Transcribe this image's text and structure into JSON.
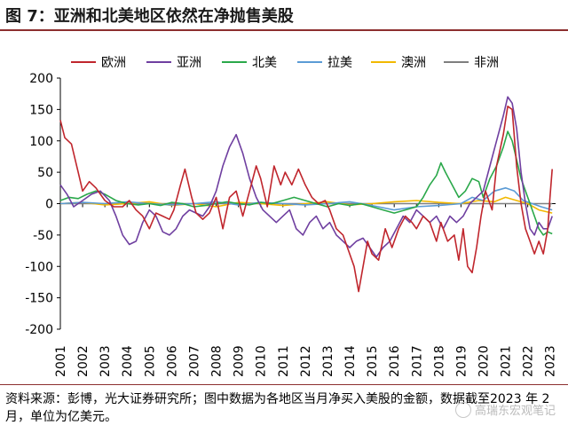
{
  "title": "图 7：亚洲和北美地区依然在净抛售美股",
  "footnote": "资料来源：彭博，光大证券研究所；图中数据为各地区当月净买入美股的金额，数据截至2023 年 2 月，单位为亿美元。",
  "watermark": "高瑞东宏观笔记",
  "chart_data": {
    "type": "line",
    "title": "",
    "xlabel": "",
    "ylabel": "",
    "ylim": [
      -200,
      200
    ],
    "yticks": [
      -200,
      -150,
      -100,
      -50,
      0,
      50,
      100,
      150,
      200
    ],
    "xlim": [
      2001,
      2023.25
    ],
    "xticks": [
      "2001",
      "2002",
      "2003",
      "2004",
      "2005",
      "2006",
      "2007",
      "2008",
      "2009",
      "2010",
      "2011",
      "2012",
      "2013",
      "2014",
      "2015",
      "2016",
      "2017",
      "2018",
      "2019",
      "2020",
      "2021",
      "2022",
      "2023"
    ],
    "legend_position": "top",
    "grid": false,
    "series": [
      {
        "name": "欧洲",
        "color": "#c0262d",
        "points": [
          [
            2001.0,
            133
          ],
          [
            2001.2,
            105
          ],
          [
            2001.5,
            95
          ],
          [
            2001.8,
            50
          ],
          [
            2002.0,
            20
          ],
          [
            2002.3,
            35
          ],
          [
            2002.6,
            25
          ],
          [
            2003.0,
            5
          ],
          [
            2003.4,
            -5
          ],
          [
            2003.8,
            -5
          ],
          [
            2004.1,
            5
          ],
          [
            2004.4,
            -10
          ],
          [
            2004.7,
            -20
          ],
          [
            2005.0,
            -40
          ],
          [
            2005.3,
            -15
          ],
          [
            2005.6,
            -20
          ],
          [
            2005.9,
            -25
          ],
          [
            2006.1,
            -10
          ],
          [
            2006.4,
            30
          ],
          [
            2006.6,
            55
          ],
          [
            2006.9,
            10
          ],
          [
            2007.1,
            -15
          ],
          [
            2007.4,
            -25
          ],
          [
            2007.7,
            -15
          ],
          [
            2008.0,
            10
          ],
          [
            2008.3,
            -40
          ],
          [
            2008.6,
            10
          ],
          [
            2008.9,
            20
          ],
          [
            2009.2,
            -20
          ],
          [
            2009.5,
            20
          ],
          [
            2009.8,
            60
          ],
          [
            2010.0,
            40
          ],
          [
            2010.3,
            -5
          ],
          [
            2010.6,
            60
          ],
          [
            2010.9,
            30
          ],
          [
            2011.1,
            50
          ],
          [
            2011.4,
            30
          ],
          [
            2011.7,
            55
          ],
          [
            2012.0,
            30
          ],
          [
            2012.3,
            10
          ],
          [
            2012.6,
            0
          ],
          [
            2012.9,
            5
          ],
          [
            2013.1,
            -10
          ],
          [
            2013.4,
            -40
          ],
          [
            2013.7,
            -50
          ],
          [
            2014.0,
            -80
          ],
          [
            2014.2,
            -100
          ],
          [
            2014.4,
            -140
          ],
          [
            2014.6,
            -100
          ],
          [
            2014.8,
            -60
          ],
          [
            2015.0,
            -80
          ],
          [
            2015.3,
            -90
          ],
          [
            2015.6,
            -40
          ],
          [
            2015.9,
            -70
          ],
          [
            2016.2,
            -40
          ],
          [
            2016.5,
            -20
          ],
          [
            2016.8,
            -30
          ],
          [
            2017.0,
            -40
          ],
          [
            2017.3,
            -20
          ],
          [
            2017.6,
            -30
          ],
          [
            2017.9,
            -60
          ],
          [
            2018.1,
            -30
          ],
          [
            2018.4,
            -60
          ],
          [
            2018.7,
            -50
          ],
          [
            2018.9,
            -90
          ],
          [
            2019.1,
            -40
          ],
          [
            2019.3,
            -100
          ],
          [
            2019.5,
            -110
          ],
          [
            2019.7,
            -70
          ],
          [
            2019.9,
            -20
          ],
          [
            2020.1,
            20
          ],
          [
            2020.4,
            -10
          ],
          [
            2020.6,
            60
          ],
          [
            2020.9,
            110
          ],
          [
            2021.1,
            155
          ],
          [
            2021.3,
            150
          ],
          [
            2021.5,
            60
          ],
          [
            2021.7,
            0
          ],
          [
            2021.9,
            -40
          ],
          [
            2022.1,
            -60
          ],
          [
            2022.3,
            -80
          ],
          [
            2022.5,
            -60
          ],
          [
            2022.7,
            -80
          ],
          [
            2022.9,
            -40
          ],
          [
            2023.0,
            10
          ],
          [
            2023.1,
            55
          ]
        ]
      },
      {
        "name": "亚洲",
        "color": "#6f3fa0",
        "points": [
          [
            2001.0,
            30
          ],
          [
            2001.3,
            15
          ],
          [
            2001.6,
            -5
          ],
          [
            2002.0,
            5
          ],
          [
            2002.4,
            15
          ],
          [
            2002.8,
            20
          ],
          [
            2003.2,
            5
          ],
          [
            2003.5,
            -20
          ],
          [
            2003.8,
            -50
          ],
          [
            2004.1,
            -65
          ],
          [
            2004.4,
            -60
          ],
          [
            2004.7,
            -30
          ],
          [
            2005.0,
            -10
          ],
          [
            2005.3,
            -20
          ],
          [
            2005.6,
            -45
          ],
          [
            2005.9,
            -50
          ],
          [
            2006.2,
            -40
          ],
          [
            2006.5,
            -20
          ],
          [
            2006.8,
            -10
          ],
          [
            2007.1,
            -15
          ],
          [
            2007.4,
            -20
          ],
          [
            2007.7,
            -5
          ],
          [
            2008.0,
            20
          ],
          [
            2008.3,
            60
          ],
          [
            2008.6,
            90
          ],
          [
            2008.9,
            110
          ],
          [
            2009.2,
            80
          ],
          [
            2009.5,
            40
          ],
          [
            2009.8,
            10
          ],
          [
            2010.1,
            -10
          ],
          [
            2010.4,
            -20
          ],
          [
            2010.7,
            -30
          ],
          [
            2011.0,
            -20
          ],
          [
            2011.3,
            -10
          ],
          [
            2011.6,
            -40
          ],
          [
            2011.9,
            -50
          ],
          [
            2012.2,
            -30
          ],
          [
            2012.5,
            -20
          ],
          [
            2012.8,
            -40
          ],
          [
            2013.1,
            -30
          ],
          [
            2013.4,
            -50
          ],
          [
            2013.7,
            -60
          ],
          [
            2014.0,
            -70
          ],
          [
            2014.3,
            -60
          ],
          [
            2014.6,
            -55
          ],
          [
            2014.9,
            -70
          ],
          [
            2015.2,
            -85
          ],
          [
            2015.5,
            -70
          ],
          [
            2015.8,
            -60
          ],
          [
            2016.1,
            -40
          ],
          [
            2016.4,
            -20
          ],
          [
            2016.7,
            -30
          ],
          [
            2017.0,
            -10
          ],
          [
            2017.3,
            -20
          ],
          [
            2017.6,
            -30
          ],
          [
            2017.9,
            -20
          ],
          [
            2018.2,
            -40
          ],
          [
            2018.5,
            -20
          ],
          [
            2018.8,
            -30
          ],
          [
            2019.1,
            -20
          ],
          [
            2019.4,
            0
          ],
          [
            2019.7,
            10
          ],
          [
            2020.0,
            20
          ],
          [
            2020.3,
            60
          ],
          [
            2020.6,
            100
          ],
          [
            2020.9,
            140
          ],
          [
            2021.1,
            170
          ],
          [
            2021.3,
            160
          ],
          [
            2021.5,
            120
          ],
          [
            2021.7,
            50
          ],
          [
            2021.9,
            0
          ],
          [
            2022.1,
            -40
          ],
          [
            2022.3,
            -50
          ],
          [
            2022.5,
            -30
          ],
          [
            2022.7,
            -40
          ],
          [
            2022.9,
            -40
          ],
          [
            2023.1,
            -20
          ]
        ]
      },
      {
        "name": "北美",
        "color": "#2aa84a",
        "points": [
          [
            2001.0,
            5
          ],
          [
            2001.4,
            10
          ],
          [
            2001.8,
            8
          ],
          [
            2002.2,
            15
          ],
          [
            2002.6,
            20
          ],
          [
            2003.0,
            15
          ],
          [
            2003.5,
            5
          ],
          [
            2004.0,
            0
          ],
          [
            2004.5,
            -2
          ],
          [
            2005.0,
            0
          ],
          [
            2005.5,
            -3
          ],
          [
            2006.0,
            2
          ],
          [
            2006.5,
            0
          ],
          [
            2007.0,
            -5
          ],
          [
            2007.5,
            -3
          ],
          [
            2008.0,
            0
          ],
          [
            2008.5,
            3
          ],
          [
            2009.0,
            0
          ],
          [
            2009.5,
            -2
          ],
          [
            2010.0,
            2
          ],
          [
            2010.5,
            0
          ],
          [
            2011.0,
            5
          ],
          [
            2011.5,
            10
          ],
          [
            2012.0,
            5
          ],
          [
            2012.5,
            0
          ],
          [
            2013.0,
            -5
          ],
          [
            2013.5,
            0
          ],
          [
            2014.0,
            -3
          ],
          [
            2014.5,
            0
          ],
          [
            2015.0,
            -5
          ],
          [
            2015.5,
            -10
          ],
          [
            2016.0,
            -15
          ],
          [
            2016.5,
            -10
          ],
          [
            2017.0,
            -5
          ],
          [
            2017.3,
            10
          ],
          [
            2017.6,
            30
          ],
          [
            2017.9,
            45
          ],
          [
            2018.1,
            65
          ],
          [
            2018.3,
            50
          ],
          [
            2018.6,
            30
          ],
          [
            2018.9,
            10
          ],
          [
            2019.2,
            20
          ],
          [
            2019.5,
            40
          ],
          [
            2019.8,
            35
          ],
          [
            2020.0,
            10
          ],
          [
            2020.3,
            40
          ],
          [
            2020.6,
            60
          ],
          [
            2020.9,
            90
          ],
          [
            2021.1,
            115
          ],
          [
            2021.3,
            100
          ],
          [
            2021.5,
            70
          ],
          [
            2021.7,
            40
          ],
          [
            2021.9,
            20
          ],
          [
            2022.1,
            0
          ],
          [
            2022.3,
            -20
          ],
          [
            2022.5,
            -40
          ],
          [
            2022.7,
            -50
          ],
          [
            2022.9,
            -45
          ],
          [
            2023.1,
            -48
          ]
        ]
      },
      {
        "name": "拉美",
        "color": "#5b9bd5",
        "points": [
          [
            2001.0,
            0
          ],
          [
            2002.0,
            2
          ],
          [
            2003.0,
            0
          ],
          [
            2004.0,
            3
          ],
          [
            2005.0,
            0
          ],
          [
            2006.0,
            -2
          ],
          [
            2007.0,
            0
          ],
          [
            2008.0,
            3
          ],
          [
            2009.0,
            -2
          ],
          [
            2010.0,
            2
          ],
          [
            2011.0,
            0
          ],
          [
            2012.0,
            -2
          ],
          [
            2013.0,
            0
          ],
          [
            2014.0,
            3
          ],
          [
            2015.0,
            -3
          ],
          [
            2016.0,
            -10
          ],
          [
            2017.0,
            -5
          ],
          [
            2018.0,
            -3
          ],
          [
            2019.0,
            0
          ],
          [
            2019.5,
            10
          ],
          [
            2020.0,
            5
          ],
          [
            2020.5,
            20
          ],
          [
            2021.0,
            25
          ],
          [
            2021.4,
            20
          ],
          [
            2021.8,
            5
          ],
          [
            2022.2,
            0
          ],
          [
            2022.6,
            -5
          ],
          [
            2023.1,
            -10
          ]
        ]
      },
      {
        "name": "澳洲",
        "color": "#f2b800",
        "points": [
          [
            2001.0,
            0
          ],
          [
            2002.0,
            2
          ],
          [
            2003.0,
            -2
          ],
          [
            2004.0,
            0
          ],
          [
            2005.0,
            3
          ],
          [
            2006.0,
            -3
          ],
          [
            2007.0,
            0
          ],
          [
            2008.0,
            -5
          ],
          [
            2009.0,
            2
          ],
          [
            2010.0,
            0
          ],
          [
            2011.0,
            -3
          ],
          [
            2012.0,
            0
          ],
          [
            2013.0,
            3
          ],
          [
            2014.0,
            -2
          ],
          [
            2015.0,
            0
          ],
          [
            2016.0,
            3
          ],
          [
            2017.0,
            5
          ],
          [
            2018.0,
            2
          ],
          [
            2019.0,
            0
          ],
          [
            2019.8,
            5
          ],
          [
            2020.5,
            3
          ],
          [
            2021.0,
            10
          ],
          [
            2021.5,
            5
          ],
          [
            2022.0,
            0
          ],
          [
            2022.5,
            -10
          ],
          [
            2023.1,
            -15
          ]
        ]
      },
      {
        "name": "非洲",
        "color": "#7f7f7f",
        "points": [
          [
            2001.0,
            0
          ],
          [
            2005.0,
            0
          ],
          [
            2010.0,
            0
          ],
          [
            2015.0,
            0
          ],
          [
            2020.0,
            0
          ],
          [
            2023.1,
            0
          ]
        ]
      }
    ]
  }
}
